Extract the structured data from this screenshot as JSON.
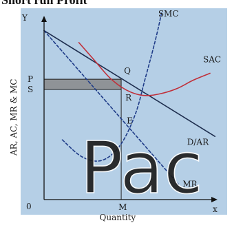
{
  "title": "Short run Profit",
  "colors": {
    "background": "#b5cfe6",
    "ar_line": "#1f2f4f",
    "mr_line": "#1f3c88",
    "smc_line": "#1f3c88",
    "sac_line": "#c0303a",
    "profit_area": "#888888",
    "axis": "#111111",
    "watermark": "#ffffff"
  },
  "chart_data": {
    "type": "line",
    "xlabel": "Quantity",
    "ylabel": "AR, AC, MR & MC",
    "origin_label": "0",
    "x_axis_label": "x",
    "y_axis_label": "Y",
    "xlim": [
      0,
      10
    ],
    "ylim": [
      0,
      10
    ],
    "grid": false,
    "series": [
      {
        "name": "D/AR",
        "style": "solid",
        "color": "#1f2f4f",
        "x": [
          0,
          10.3
        ],
        "y": [
          9.9,
          3.7
        ]
      },
      {
        "name": "MR",
        "style": "dashed",
        "color": "#1f3c88",
        "x": [
          0,
          8.1
        ],
        "y": [
          9.9,
          0.9
        ]
      },
      {
        "name": "SMC",
        "style": "dashed",
        "color": "#1f3c88",
        "x": [
          1.1,
          2.3,
          3.5,
          4.6,
          5.5,
          6.1,
          6.7,
          7.1
        ],
        "y": [
          3.5,
          2.5,
          2.3,
          3.2,
          5.0,
          7.1,
          9.3,
          11.0
        ]
      },
      {
        "name": "SAC",
        "style": "solid",
        "color": "#c0303a",
        "x": [
          2.1,
          3.0,
          4.0,
          5.0,
          6.0,
          7.0,
          8.0,
          9.0,
          10.0
        ],
        "y": [
          9.2,
          8.2,
          7.1,
          6.4,
          6.1,
          6.2,
          6.5,
          7.0,
          7.4
        ]
      }
    ],
    "points": [
      {
        "label": "Q",
        "x": 4.65,
        "y": 7.05
      },
      {
        "label": "R",
        "x": 4.65,
        "y": 6.45
      },
      {
        "label": "E",
        "x": 4.65,
        "y": 4.7
      }
    ],
    "axis_levels": [
      {
        "label": "P",
        "axis": "y",
        "value": 7.05
      },
      {
        "label": "S",
        "axis": "y",
        "value": 6.45
      },
      {
        "label": "M",
        "axis": "x",
        "value": 4.65
      }
    ],
    "shaded_region": {
      "name": "profit",
      "x": [
        0,
        4.65
      ],
      "y": [
        6.45,
        7.05
      ]
    }
  },
  "watermark": "Pac"
}
